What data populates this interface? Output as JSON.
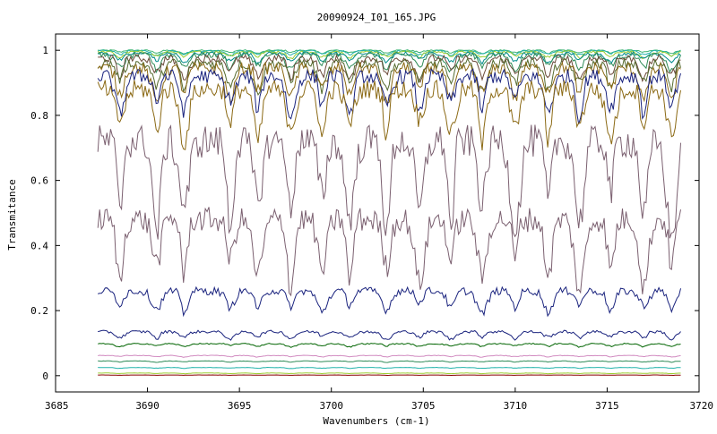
{
  "chart_data": {
    "type": "line",
    "title": "20090924_I01_165.JPG",
    "xlabel": "Wavenumbers (cm-1)",
    "ylabel": "Transmitance",
    "xlim": [
      3685,
      3720
    ],
    "ylim": [
      -0.05,
      1.05
    ],
    "x_ticks": [
      3685,
      3690,
      3695,
      3700,
      3705,
      3710,
      3715,
      3720
    ],
    "x_tick_labels": [
      "3685",
      "3690",
      "3695",
      "3700",
      "3705",
      "3710",
      "3715",
      "3720"
    ],
    "y_ticks": [
      0,
      0.2,
      0.4,
      0.6,
      0.8,
      1
    ],
    "y_tick_labels": [
      "0",
      "0.2",
      "0.4",
      "0.6",
      "0.8",
      "1"
    ],
    "x_range": [
      3687.3,
      3719.0
    ],
    "absorption_lines": [
      3688.5,
      3690.5,
      3692.0,
      3694.5,
      3696.0,
      3697.8,
      3699.5,
      3701.0,
      3703.0,
      3704.8,
      3706.5,
      3708.2,
      3710.0,
      3711.8,
      3713.5,
      3715.2,
      3717.0,
      3718.5
    ],
    "series": [
      {
        "color": "#3cb371",
        "baseline": 1.0,
        "depth": 0.01
      },
      {
        "color": "#20b2aa",
        "baseline": 0.998,
        "depth": 0.015
      },
      {
        "color": "#9acd32",
        "baseline": 0.995,
        "depth": 0.02
      },
      {
        "color": "#008b8b",
        "baseline": 0.99,
        "depth": 0.03
      },
      {
        "color": "#2e8b57",
        "baseline": 0.985,
        "depth": 0.05
      },
      {
        "color": "#6b4a3a",
        "baseline": 0.975,
        "depth": 0.07
      },
      {
        "color": "#556b2f",
        "baseline": 0.96,
        "depth": 0.09
      },
      {
        "color": "#8b6914",
        "baseline": 0.945,
        "depth": 0.11
      },
      {
        "color": "#1a237e",
        "baseline": 0.92,
        "depth": 0.13
      },
      {
        "color": "#8b6914",
        "baseline": 0.88,
        "depth": 0.17
      },
      {
        "color": "#7b6070",
        "baseline": 0.72,
        "depth": 0.3
      },
      {
        "color": "#7b6070",
        "baseline": 0.48,
        "depth": 0.22
      },
      {
        "color": "#1a237e",
        "baseline": 0.26,
        "depth": 0.07
      },
      {
        "color": "#1a237e",
        "baseline": 0.135,
        "depth": 0.025
      },
      {
        "color": "#006400",
        "baseline": 0.098,
        "depth": 0.01
      },
      {
        "color": "#d18ac0",
        "baseline": 0.062,
        "depth": 0.005
      },
      {
        "color": "#2e8b57",
        "baseline": 0.045,
        "depth": 0.004
      },
      {
        "color": "#20b2aa",
        "baseline": 0.025,
        "depth": 0.003
      },
      {
        "color": "#9acd32",
        "baseline": 0.008,
        "depth": 0.002
      },
      {
        "color": "#8b0000",
        "baseline": 0.002,
        "depth": 0.001
      }
    ]
  }
}
